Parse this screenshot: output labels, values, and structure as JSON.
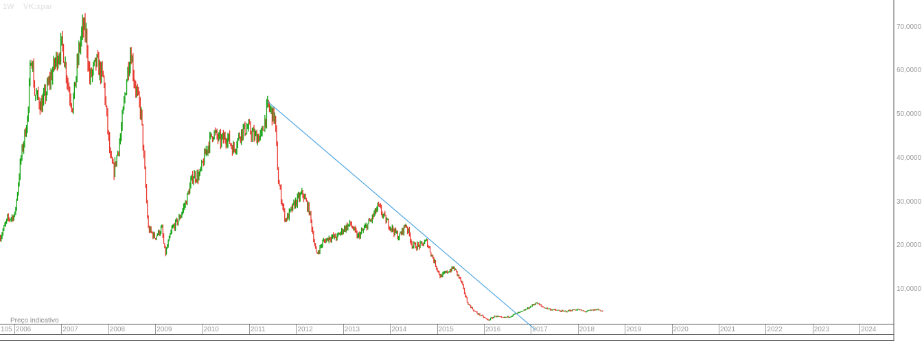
{
  "header": {
    "interval": "1W",
    "symbol": "VK:xpar"
  },
  "note": "Preço indicativo",
  "chart_data": {
    "type": "candlestick",
    "interval": "weekly",
    "x_unit": "decimal year",
    "ylim": [
      2.2,
      76.2
    ],
    "y_ticks": [
      "10,0000",
      "20,0000",
      "30,0000",
      "40,0000",
      "50,0000",
      "60,0000",
      "70,0000"
    ],
    "y_tick_values": [
      10,
      20,
      30,
      40,
      50,
      60,
      70
    ],
    "x_ticks": [
      "105",
      "2006",
      "2007",
      "2008",
      "2009",
      "2010",
      "2011",
      "2012",
      "2013",
      "2014",
      "2015",
      "2016",
      "2017",
      "2018",
      "2019",
      "2020",
      "2021",
      "2022",
      "2023",
      "2024"
    ],
    "x_tick_values": [
      2005,
      2006,
      2007,
      2008,
      2009,
      2010,
      2011,
      2012,
      2013,
      2014,
      2015,
      2016,
      2017,
      2018,
      2019,
      2020,
      2021,
      2022,
      2023,
      2024
    ],
    "approx_close_path": [
      [
        2005.69,
        22
      ],
      [
        2005.84,
        26
      ],
      [
        2006.0,
        27
      ],
      [
        2006.13,
        40
      ],
      [
        2006.28,
        50
      ],
      [
        2006.35,
        65
      ],
      [
        2006.42,
        55
      ],
      [
        2006.57,
        52
      ],
      [
        2006.72,
        57
      ],
      [
        2006.86,
        62
      ],
      [
        2007.01,
        66
      ],
      [
        2007.16,
        55
      ],
      [
        2007.23,
        52
      ],
      [
        2007.37,
        65
      ],
      [
        2007.45,
        70
      ],
      [
        2007.52,
        68
      ],
      [
        2007.59,
        58
      ],
      [
        2007.74,
        62
      ],
      [
        2007.89,
        58
      ],
      [
        2008.03,
        40
      ],
      [
        2008.11,
        37
      ],
      [
        2008.25,
        45
      ],
      [
        2008.4,
        60
      ],
      [
        2008.47,
        65
      ],
      [
        2008.54,
        58
      ],
      [
        2008.69,
        50
      ],
      [
        2008.76,
        38
      ],
      [
        2008.84,
        24
      ],
      [
        2008.98,
        22
      ],
      [
        2009.13,
        24
      ],
      [
        2009.2,
        18
      ],
      [
        2009.35,
        24
      ],
      [
        2009.49,
        26
      ],
      [
        2009.64,
        30
      ],
      [
        2009.79,
        36
      ],
      [
        2009.93,
        36
      ],
      [
        2010.08,
        42
      ],
      [
        2010.22,
        46
      ],
      [
        2010.37,
        44
      ],
      [
        2010.52,
        45
      ],
      [
        2010.66,
        42
      ],
      [
        2010.81,
        46
      ],
      [
        2010.96,
        47
      ],
      [
        2011.1,
        45
      ],
      [
        2011.25,
        45
      ],
      [
        2011.39,
        52
      ],
      [
        2011.54,
        49
      ],
      [
        2011.61,
        35
      ],
      [
        2011.69,
        30
      ],
      [
        2011.76,
        26
      ],
      [
        2011.83,
        27
      ],
      [
        2011.98,
        30
      ],
      [
        2012.13,
        32
      ],
      [
        2012.27,
        28
      ],
      [
        2012.42,
        18
      ],
      [
        2012.57,
        21
      ],
      [
        2012.71,
        22
      ],
      [
        2012.86,
        22
      ],
      [
        2013.01,
        24
      ],
      [
        2013.15,
        25
      ],
      [
        2013.3,
        22
      ],
      [
        2013.45,
        24
      ],
      [
        2013.59,
        26
      ],
      [
        2013.74,
        29
      ],
      [
        2013.89,
        26
      ],
      [
        2014.03,
        24
      ],
      [
        2014.18,
        22
      ],
      [
        2014.33,
        25
      ],
      [
        2014.47,
        20
      ],
      [
        2014.62,
        20
      ],
      [
        2014.77,
        21
      ],
      [
        2014.91,
        17
      ],
      [
        2015.06,
        13
      ],
      [
        2015.2,
        14
      ],
      [
        2015.35,
        15
      ],
      [
        2015.5,
        12
      ],
      [
        2015.64,
        7
      ],
      [
        2015.79,
        5
      ],
      [
        2015.94,
        4
      ],
      [
        2016.08,
        3
      ],
      [
        2016.23,
        4
      ],
      [
        2016.37,
        3.5
      ],
      [
        2016.52,
        3.8
      ],
      [
        2016.67,
        4.5
      ],
      [
        2016.81,
        5
      ],
      [
        2016.96,
        6
      ],
      [
        2017.1,
        7
      ],
      [
        2017.25,
        6
      ],
      [
        2017.4,
        5.5
      ],
      [
        2017.69,
        5
      ],
      [
        2017.98,
        5.5
      ],
      [
        2018.13,
        5
      ],
      [
        2018.42,
        5.5
      ],
      [
        2018.53,
        5
      ]
    ],
    "trendline": {
      "from": [
        2011.39,
        53
      ],
      "to": [
        2017.1,
        0.8
      ]
    },
    "colors": {
      "up": "#12a312",
      "down": "#e8362c",
      "trendline": "#4ea6e2",
      "axis": "#555555"
    }
  }
}
